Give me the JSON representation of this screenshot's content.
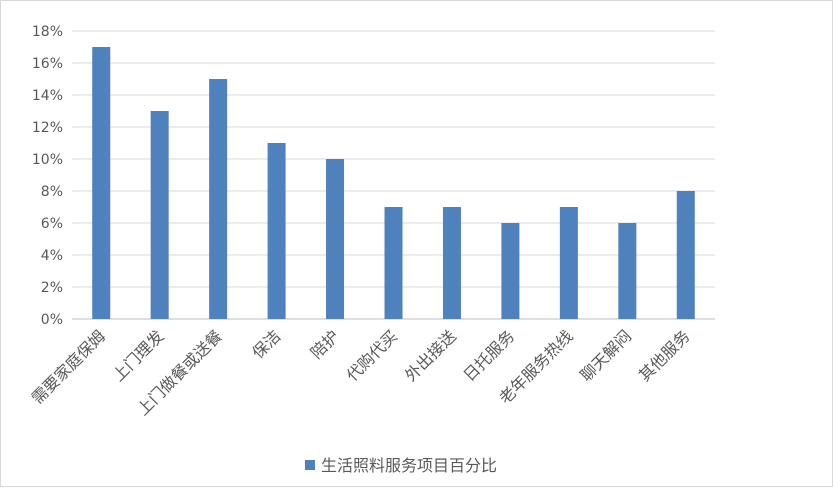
{
  "chart_data": {
    "type": "bar",
    "title": "",
    "xlabel": "",
    "ylabel": "",
    "categories": [
      "需要家庭保姆",
      "上门理发",
      "上门做餐或送餐",
      "保洁",
      "陪护",
      "代购代买",
      "外出接送",
      "日托服务",
      "老年服务热线",
      "聊天解闷",
      "其他服务"
    ],
    "series": [
      {
        "name": "生活照料服务项目百分比",
        "values": [
          17,
          13,
          15,
          11,
          10,
          7,
          7,
          6,
          7,
          6,
          8
        ],
        "color": "#4f81bd"
      }
    ],
    "ylim": [
      0,
      18
    ],
    "yticks": [
      0,
      2,
      4,
      6,
      8,
      10,
      12,
      14,
      16,
      18
    ],
    "ytick_labels": [
      "0%",
      "2%",
      "4%",
      "6%",
      "8%",
      "10%",
      "12%",
      "14%",
      "16%",
      "18%"
    ],
    "grid": true,
    "legend": "bottom"
  }
}
